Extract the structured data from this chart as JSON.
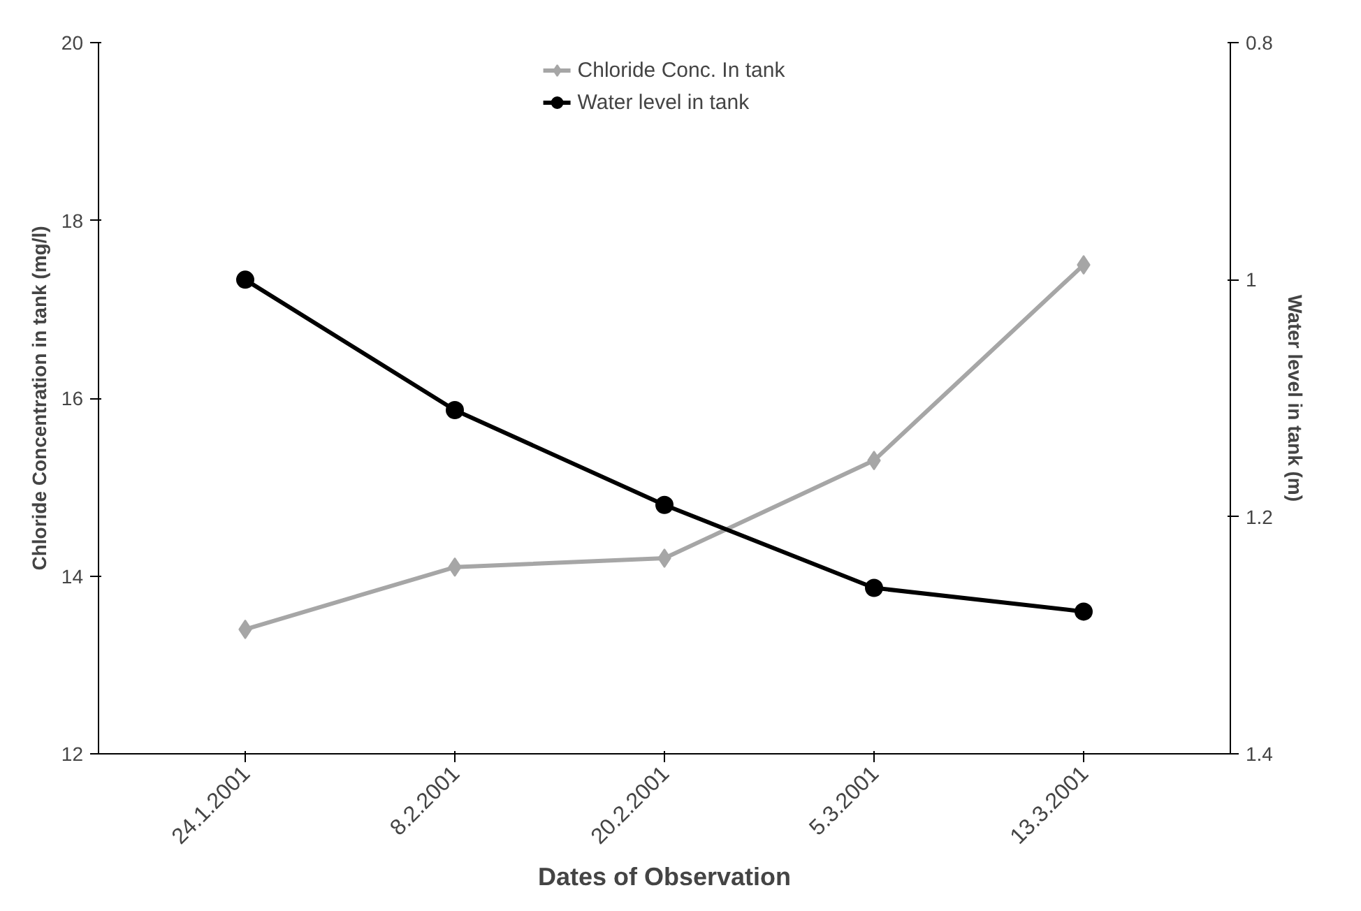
{
  "chart_data": {
    "type": "line",
    "xlabel": "Dates of Observation",
    "ylabel": "Chloride Concentration in tank (mg/l)",
    "y2label": "Water level in tank (m)",
    "categories": [
      "24.1.2001",
      "8.2.2001",
      "20.2.2001",
      "5.3.2001",
      "13.3.2001"
    ],
    "series": [
      {
        "name": "Chloride Conc. In tank",
        "color": "#a6a6a6",
        "marker": "diamond",
        "values": [
          13.4,
          14.1,
          14.2,
          15.3,
          17.5
        ]
      },
      {
        "name": "Water level in tank",
        "color": "#000000",
        "marker": "circle",
        "axis": "y2",
        "values": [
          1.0,
          1.11,
          1.19,
          1.26,
          1.28
        ]
      }
    ],
    "ylim": [
      12,
      20
    ],
    "yticks": [
      12,
      14,
      16,
      18,
      20
    ],
    "y2lim": [
      1.4,
      0.8
    ],
    "y2ticks": [
      0.8,
      1,
      1.2,
      1.4
    ],
    "grid": false,
    "legend": "top",
    "line_style": "solid"
  }
}
